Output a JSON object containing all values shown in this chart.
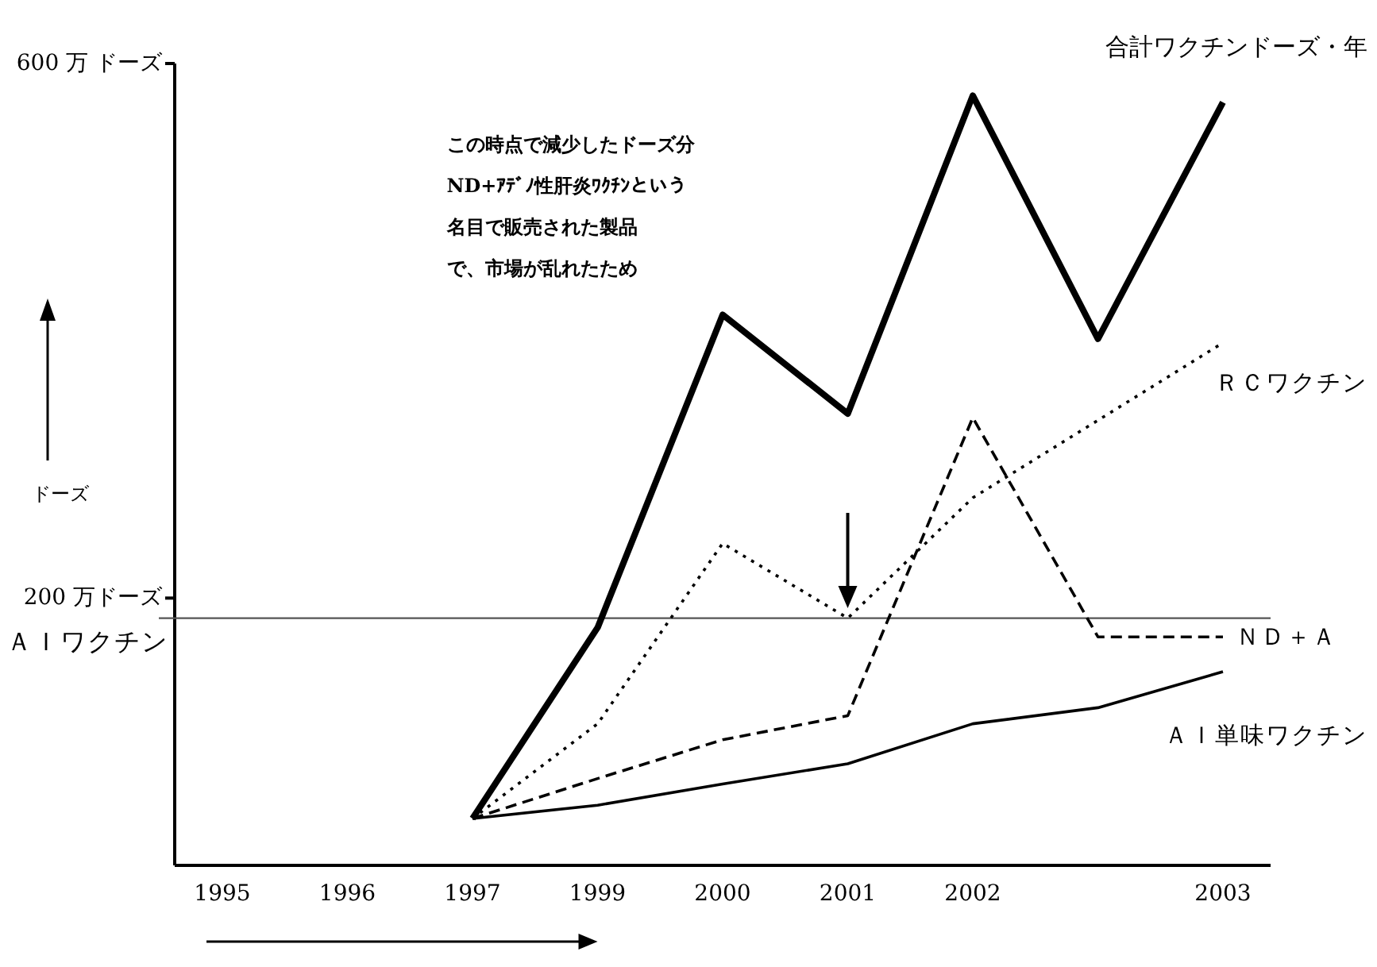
{
  "chart_data": {
    "type": "line",
    "categories": [
      "1995",
      "1996",
      "1997",
      "1999",
      "2000",
      "2001",
      "2002",
      null,
      "2003"
    ],
    "ylabel": "ドーズ",
    "ylim": [
      0,
      600
    ],
    "yticks": [
      {
        "value": 600,
        "label": "600 万 ドーズ"
      },
      {
        "value": 200,
        "label": "200 万ドーズ"
      }
    ],
    "legend": false,
    "grid": false,
    "series": [
      {
        "name": "合計ワクチンドーズ・年",
        "color": "#000000",
        "line_style": "solid",
        "values": [
          null,
          null,
          35,
          178,
          412,
          338,
          576,
          394,
          571
        ]
      },
      {
        "name": "ＲＣワクチン",
        "color": "#000000",
        "line_style": "dotted",
        "values": [
          null,
          null,
          35,
          106,
          241,
          185,
          275,
          333,
          391
        ]
      },
      {
        "name": "ＮＤ＋Ａ",
        "color": "#000000",
        "line_style": "dashed",
        "values": [
          null,
          null,
          35,
          65,
          94,
          112,
          335,
          171,
          171
        ]
      },
      {
        "name": "ＡＩ単味ワクチン",
        "color": "#000000",
        "line_style": "solid",
        "values": [
          null,
          null,
          35,
          45,
          61,
          76,
          106,
          118,
          145
        ]
      }
    ],
    "ref_lines": [
      {
        "axis": "y",
        "value": 185,
        "label": "ＡＩワクチン",
        "color": "#555555"
      }
    ],
    "annotations": [
      "この時点で減少したドーズ分",
      "ND+ｱﾃﾞﾉ性肝炎ﾜｸﾁﾝという",
      "名目で販売された製品",
      "で、市場が乱れたため"
    ]
  }
}
